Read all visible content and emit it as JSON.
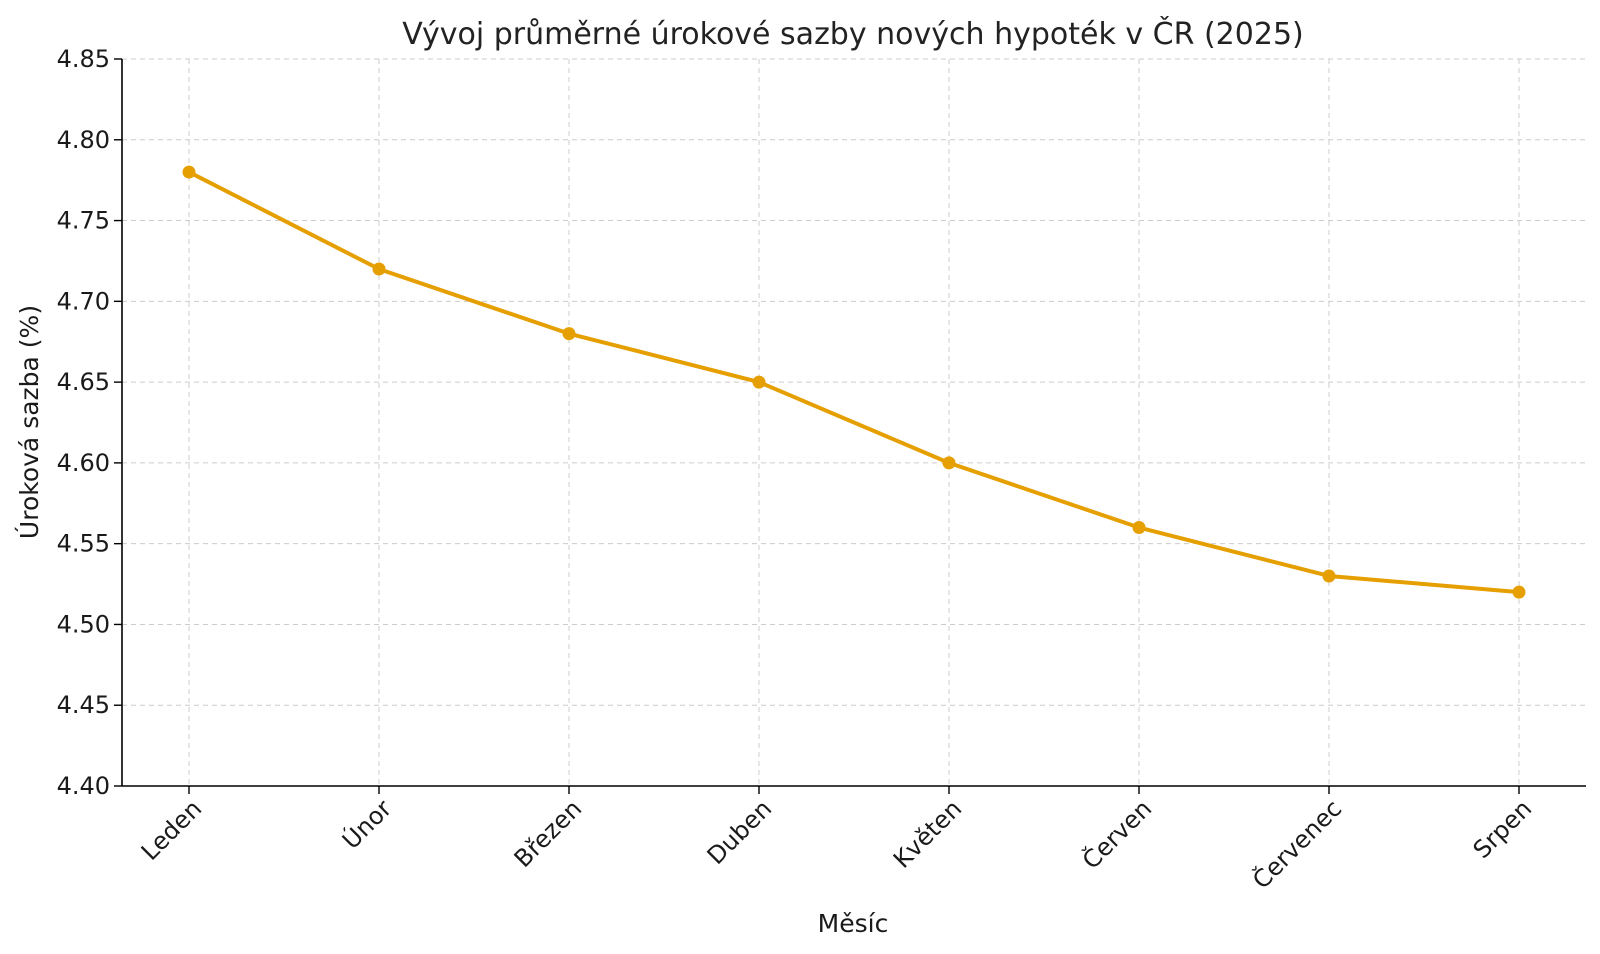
{
  "chart_data": {
    "type": "line",
    "title": "Vývoj průměrné úrokové sazby nových hypoték v ČR (2025)",
    "xlabel": "Měsíc",
    "ylabel": "Úroková sazba (%)",
    "categories": [
      "Leden",
      "Únor",
      "Březen",
      "Duben",
      "Květen",
      "Červen",
      "Červenec",
      "Srpen"
    ],
    "series": [
      {
        "values": [
          4.78,
          4.72,
          4.68,
          4.65,
          4.6,
          4.56,
          4.53,
          4.52
        ],
        "color": "#E69F00"
      }
    ],
    "ylim": [
      4.4,
      4.85
    ],
    "yticks": [
      "4.40",
      "4.45",
      "4.50",
      "4.55",
      "4.60",
      "4.65",
      "4.70",
      "4.75",
      "4.80",
      "4.85"
    ],
    "grid": true,
    "legend": "none"
  }
}
